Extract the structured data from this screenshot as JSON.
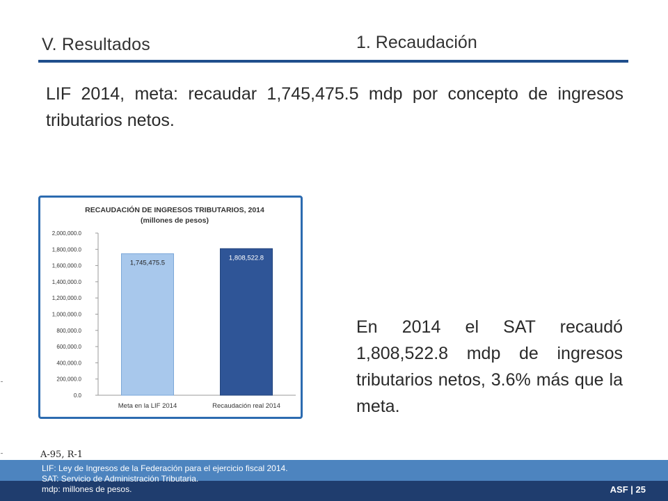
{
  "header": {
    "section_title": "V. Resultados",
    "subsection_title": "1. Recaudación",
    "rule_color": "#1f4e8c"
  },
  "intro_text": "LIF 2014, meta: recaudar 1,745,475.5 mdp por concepto de ingresos tributarios netos.",
  "result_text": "En 2014 el SAT recaudó 1,808,522.8 mdp de ingresos tributarios netos, 3.6% más que la meta.",
  "reference": "A-95, R-1",
  "footnotes": [
    "LIF: Ley de Ingresos de la Federación para el ejercicio fiscal 2014.",
    "SAT: Servicio de Administración Tributaria.",
    "mdp: millones de pesos."
  ],
  "page_label": "ASF | 25",
  "chart_data": {
    "type": "bar",
    "title": "RECAUDACIÓN DE INGRESOS TRIBUTARIOS, 2014",
    "subtitle": "(millones de pesos)",
    "categories": [
      "Meta en la LIF 2014",
      "Recaudación real 2014"
    ],
    "values": [
      1745475.5,
      1808522.8
    ],
    "value_labels": [
      "1,745,475.5",
      "1,808,522.8"
    ],
    "bar_colors": [
      "#a8c8ec",
      "#2f5597"
    ],
    "ylim": [
      0,
      2000000
    ],
    "yticks": [
      "0.0",
      "200,000.0",
      "400,000.0",
      "600,000.0",
      "800,000.0",
      "1,000,000.0",
      "1,200,000.0",
      "1,400,000.0",
      "1,600,000.0",
      "1,800,000.0",
      "2,000,000.0"
    ],
    "xlabel": "",
    "ylabel": "",
    "grid": false
  }
}
